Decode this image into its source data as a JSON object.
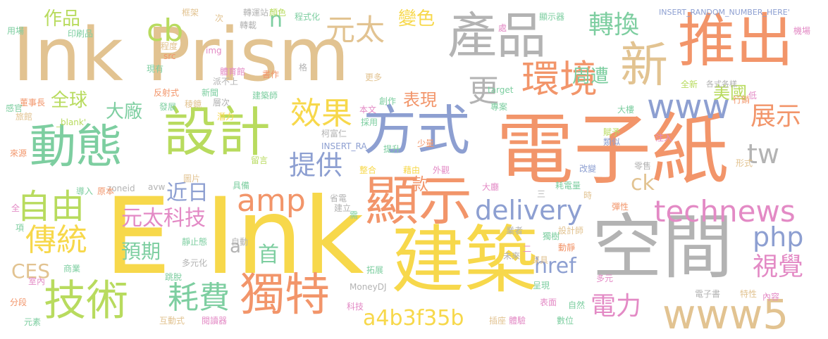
{
  "colors": {
    "tan": "#E2C391",
    "orange": "#F2956A",
    "green": "#7DCEA0",
    "yellow": "#F7D84B",
    "lime": "#B8DB5E",
    "blue": "#8D9FD1",
    "pink": "#E38AC5",
    "gray": "#B3B3B3"
  },
  "words": [
    {
      "text": "Ink Prism",
      "color": "tan"
    },
    {
      "text": "E Ink",
      "color": "yellow"
    },
    {
      "text": "電子紙",
      "color": "orange"
    },
    {
      "text": "空間",
      "color": "gray"
    },
    {
      "text": "建築",
      "color": "yellow"
    },
    {
      "text": "產品",
      "color": "gray"
    },
    {
      "text": "推出",
      "color": "orange"
    },
    {
      "text": "設計",
      "color": "lime"
    },
    {
      "text": "動態",
      "color": "green"
    },
    {
      "text": "方式",
      "color": "blue"
    },
    {
      "text": "顯示",
      "color": "orange"
    },
    {
      "text": "技術",
      "color": "lime"
    },
    {
      "text": "獨特",
      "color": "orange"
    },
    {
      "text": "環境",
      "color": "orange"
    },
    {
      "text": "新",
      "color": "tan"
    },
    {
      "text": "www5",
      "color": "tan"
    },
    {
      "text": "technews",
      "color": "pink"
    },
    {
      "text": "delivery",
      "color": "blue"
    },
    {
      "text": "www",
      "color": "blue"
    },
    {
      "text": "自由",
      "color": "lime"
    },
    {
      "text": "傳統",
      "color": "yellow"
    },
    {
      "text": "耗費",
      "color": "green"
    },
    {
      "text": "效果",
      "color": "yellow"
    },
    {
      "text": "amp",
      "color": "orange"
    },
    {
      "text": "元太",
      "color": "tan"
    },
    {
      "text": "cb",
      "color": "lime"
    },
    {
      "text": "轉換",
      "color": "green"
    },
    {
      "text": "展示",
      "color": "orange"
    },
    {
      "text": "視覺",
      "color": "pink"
    },
    {
      "text": "php",
      "color": "blue"
    },
    {
      "text": "電力",
      "color": "pink"
    },
    {
      "text": "a4b3f35b",
      "color": "yellow"
    },
    {
      "text": "元太科技",
      "color": "pink"
    },
    {
      "text": "提供",
      "color": "blue"
    },
    {
      "text": "tw",
      "color": "gray"
    },
    {
      "text": "更",
      "color": "gray"
    },
    {
      "text": "作品",
      "color": "lime"
    },
    {
      "text": "變色",
      "color": "yellow"
    },
    {
      "text": "周遭",
      "color": "green"
    },
    {
      "text": "大廠",
      "color": "green"
    },
    {
      "text": "全球",
      "color": "lime"
    },
    {
      "text": "表現",
      "color": "orange"
    },
    {
      "text": "美國",
      "color": "lime"
    },
    {
      "text": "CES",
      "color": "tan"
    },
    {
      "text": "預期",
      "color": "green"
    },
    {
      "text": "近日",
      "color": "blue"
    },
    {
      "text": "首",
      "color": "green"
    },
    {
      "text": "ck",
      "color": "tan"
    },
    {
      "text": "款",
      "color": "orange"
    },
    {
      "text": "href",
      "color": "blue"
    },
    {
      "text": "n",
      "color": "green"
    },
    {
      "text": "a",
      "color": "gray"
    },
    {
      "text": "框架",
      "color": "tan"
    },
    {
      "text": "次",
      "color": "tan"
    },
    {
      "text": "轉運站",
      "color": "gray"
    },
    {
      "text": "顏色",
      "color": "lime"
    },
    {
      "text": "程式化",
      "color": "green"
    },
    {
      "text": "顯示器",
      "color": "green"
    },
    {
      "text": "INSERT_RANDOM_NUMBER_HERE'",
      "color": "blue"
    },
    {
      "text": "用場",
      "color": "green"
    },
    {
      "text": "印刷品",
      "color": "green"
    },
    {
      "text": "轉載",
      "color": "gray"
    },
    {
      "text": "處",
      "color": "pink"
    },
    {
      "text": "機場",
      "color": "pink"
    },
    {
      "text": "程度",
      "color": "tan"
    },
    {
      "text": "src",
      "color": "orange"
    },
    {
      "text": "img",
      "color": "pink"
    },
    {
      "text": "現有",
      "color": "green"
    },
    {
      "text": "體育館",
      "color": "pink"
    },
    {
      "text": "派不上",
      "color": "gray"
    },
    {
      "text": "格",
      "color": "gray"
    },
    {
      "text": "書作",
      "color": "orange"
    },
    {
      "text": "更多",
      "color": "tan"
    },
    {
      "text": "反射式",
      "color": "orange"
    },
    {
      "text": "新聞",
      "color": "green"
    },
    {
      "text": "建築師",
      "color": "green"
    },
    {
      "text": "target",
      "color": "green"
    },
    {
      "text": "全新",
      "color": "lime"
    },
    {
      "text": "各式各樣",
      "color": "gray"
    },
    {
      "text": "低",
      "color": "pink"
    },
    {
      "text": "董事長",
      "color": "orange"
    },
    {
      "text": "感官",
      "color": "green"
    },
    {
      "text": "發展",
      "color": "green"
    },
    {
      "text": "稜鏡",
      "color": "tan"
    },
    {
      "text": "層次",
      "color": "gray"
    },
    {
      "text": "本文",
      "color": "pink"
    },
    {
      "text": "創作",
      "color": "green"
    },
    {
      "text": "專案",
      "color": "green"
    },
    {
      "text": "行銷",
      "color": "orange"
    },
    {
      "text": "旅館",
      "color": "tan"
    },
    {
      "text": "_blank'",
      "color": "lime"
    },
    {
      "text": "潛力",
      "color": "yellow"
    },
    {
      "text": "柯富仁",
      "color": "gray"
    },
    {
      "text": "採用",
      "color": "green"
    },
    {
      "text": "大樓",
      "color": "green"
    },
    {
      "text": "賦予",
      "color": "lime"
    },
    {
      "text": "類似",
      "color": "blue"
    },
    {
      "text": "來源",
      "color": "orange"
    },
    {
      "text": "INSERT_RA",
      "color": "blue"
    },
    {
      "text": "提升",
      "color": "green"
    },
    {
      "text": "少量",
      "color": "orange"
    },
    {
      "text": "注入",
      "color": "pink"
    },
    {
      "text": "留言",
      "color": "lime"
    },
    {
      "text": "整合",
      "color": "yellow"
    },
    {
      "text": "藉由",
      "color": "yellow"
    },
    {
      "text": "外觀",
      "color": "pink"
    },
    {
      "text": "改變",
      "color": "blue"
    },
    {
      "text": "零售",
      "color": "gray"
    },
    {
      "text": "形式",
      "color": "tan"
    },
    {
      "text": "圖片",
      "color": "tan"
    },
    {
      "text": "具備",
      "color": "green"
    },
    {
      "text": "耗電量",
      "color": "green"
    },
    {
      "text": "zoneid",
      "color": "gray"
    },
    {
      "text": "avw",
      "color": "gray"
    },
    {
      "text": "省電",
      "color": "gray"
    },
    {
      "text": "大廳",
      "color": "pink"
    },
    {
      "text": "三",
      "color": "gray"
    },
    {
      "text": "時",
      "color": "tan"
    },
    {
      "text": "彈性",
      "color": "orange"
    },
    {
      "text": "導入",
      "color": "green"
    },
    {
      "text": "原本",
      "color": "orange"
    },
    {
      "text": "建立",
      "color": "gray"
    },
    {
      "text": "全",
      "color": "pink"
    },
    {
      "text": "項",
      "color": "green"
    },
    {
      "text": "業者",
      "color": "gray"
    },
    {
      "text": "需",
      "color": "green"
    },
    {
      "text": "獨樹",
      "color": "green"
    },
    {
      "text": "設計師",
      "color": "tan"
    },
    {
      "text": "靜止態",
      "color": "green"
    },
    {
      "text": "自動",
      "color": "gray"
    },
    {
      "text": "二",
      "color": "pink"
    },
    {
      "text": "動靜",
      "color": "orange"
    },
    {
      "text": "商業",
      "color": "green"
    },
    {
      "text": "多元化",
      "color": "gray"
    },
    {
      "text": "未來",
      "color": "gray"
    },
    {
      "text": "深具",
      "color": "tan"
    },
    {
      "text": "拓展",
      "color": "green"
    },
    {
      "text": "跳脫",
      "color": "green"
    },
    {
      "text": "呈現",
      "color": "green"
    },
    {
      "text": "多元",
      "color": "pink"
    },
    {
      "text": "室內",
      "color": "pink"
    },
    {
      "text": "MoneyDJ",
      "color": "gray"
    },
    {
      "text": "電子書",
      "color": "gray"
    },
    {
      "text": "特性",
      "color": "tan"
    },
    {
      "text": "內容",
      "color": "pink"
    },
    {
      "text": "分段",
      "color": "orange"
    },
    {
      "text": "科技",
      "color": "pink"
    },
    {
      "text": "表面",
      "color": "pink"
    },
    {
      "text": "自然",
      "color": "green"
    },
    {
      "text": "元素",
      "color": "green"
    },
    {
      "text": "互動式",
      "color": "tan"
    },
    {
      "text": "閱讀器",
      "color": "pink"
    },
    {
      "text": "插座",
      "color": "tan"
    },
    {
      "text": "體驗",
      "color": "pink"
    },
    {
      "text": "數位",
      "color": "green"
    }
  ]
}
